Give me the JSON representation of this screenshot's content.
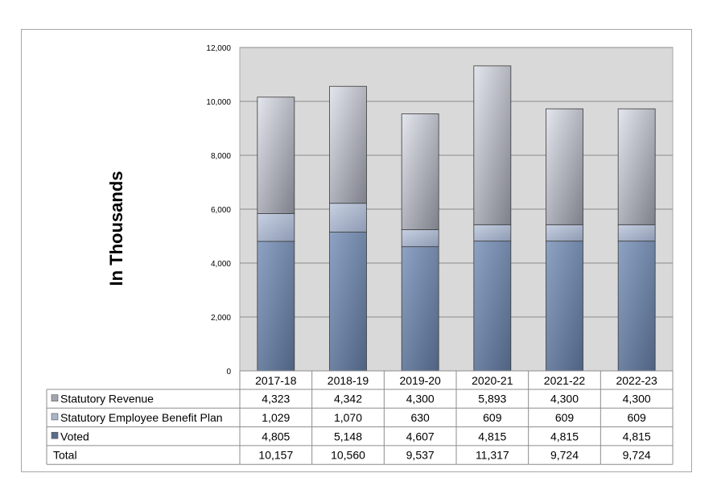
{
  "chart_data": {
    "type": "bar",
    "stacked": true,
    "ylabel": "In Thousands",
    "ylim": [
      0,
      12000
    ],
    "yticks": [
      "0",
      "2,000",
      "4,000",
      "6,000",
      "8,000",
      "10,000",
      "12,000"
    ],
    "grid": true,
    "categories": [
      "2017-18",
      "2018-19",
      "2019-20",
      "2020-21",
      "2021-22",
      "2022-23"
    ],
    "series": [
      {
        "name": "Voted",
        "values": [
          4805,
          5148,
          4607,
          4815,
          4815,
          4815
        ],
        "display": [
          "4,805",
          "5,148",
          "4,607",
          "4,815",
          "4,815",
          "4,815"
        ],
        "color": "#6f86a6"
      },
      {
        "name": "Statutory Employee Benefit Plan",
        "values": [
          1029,
          1070,
          630,
          609,
          609,
          609
        ],
        "display": [
          "1,029",
          "1,070",
          "630",
          "609",
          "609",
          "609"
        ],
        "color": "#a9b5cb"
      },
      {
        "name": "Statutory Revenue",
        "values": [
          4323,
          4342,
          4300,
          5893,
          4300,
          4300
        ],
        "display": [
          "4,323",
          "4,342",
          "4,300",
          "5,893",
          "4,300",
          "4,300"
        ],
        "color": "#b9bcc6"
      }
    ],
    "total": {
      "name": "Total",
      "display": [
        "10,157",
        "10,560",
        "9,537",
        "11,317",
        "9,724",
        "9,724"
      ]
    }
  }
}
